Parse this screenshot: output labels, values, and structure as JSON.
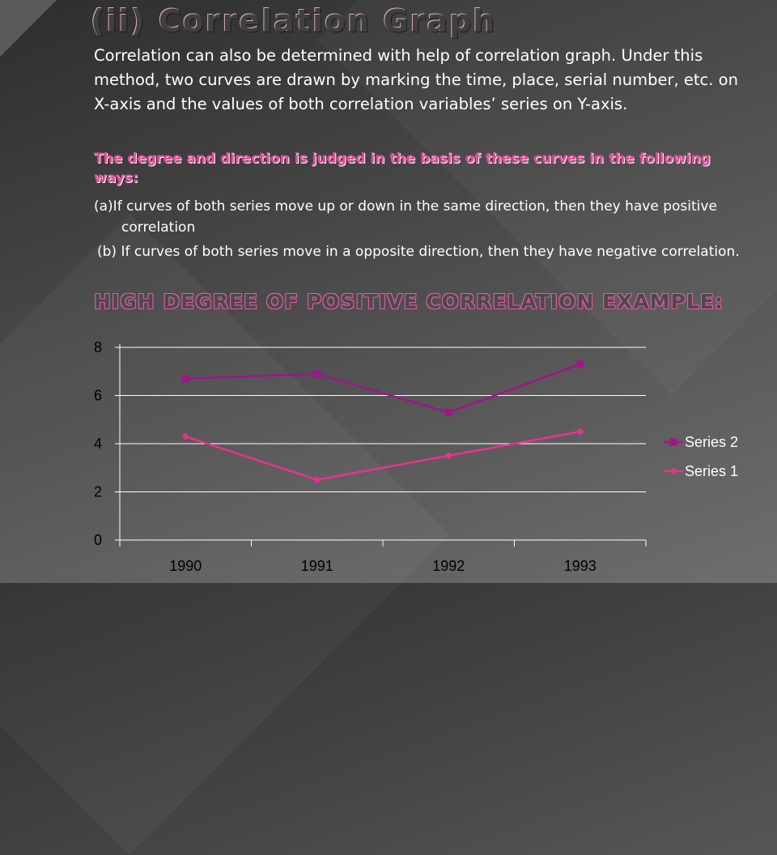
{
  "slide": {
    "title": "(ii) Correlation Graph",
    "intro": "Correlation can also be determined with help of correlation graph. Under this method, two curves are drawn by marking the time, place, serial number, etc. on X-axis and the values of both correlation variables’ series on Y-axis.",
    "highlight": "The degree and direction is judged in the basis of these curves in the following ways:",
    "point_a": "(a)If curves of both series move up or down in the same direction, then they have positive correlation",
    "point_b": "(b) If curves of both series move in a opposite direction, then they have negative correlation.",
    "example_heading": "HIGH DEGREE OF POSITIVE CORRELATION EXAMPLE:"
  },
  "chart_data": {
    "type": "line",
    "categories": [
      "1990",
      "1991",
      "1992",
      "1993"
    ],
    "series": [
      {
        "name": "Series 2",
        "values": [
          6.7,
          6.9,
          5.3,
          7.3
        ],
        "color": "#a0158a",
        "marker": "square"
      },
      {
        "name": "Series 1",
        "values": [
          4.3,
          2.5,
          3.5,
          4.5
        ],
        "color": "#e9338f",
        "marker": "diamond"
      }
    ],
    "title": "",
    "xlabel": "",
    "ylabel": "",
    "ylim": [
      0,
      8
    ],
    "yticks": [
      0,
      2,
      4,
      6,
      8
    ],
    "grid": true,
    "legend": "right"
  }
}
